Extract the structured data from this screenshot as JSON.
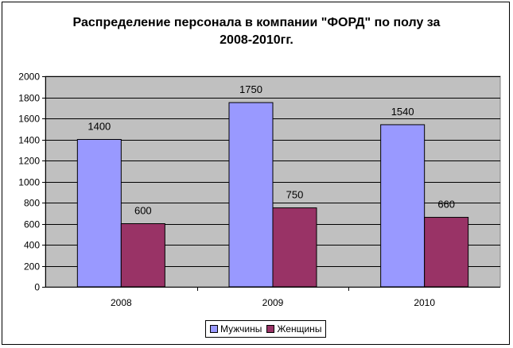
{
  "chart_data": {
    "type": "bar",
    "title_line1": "Распределение персонала в компании \"ФОРД\" по полу за",
    "title_line2": "2008-2010гг.",
    "categories": [
      "2008",
      "2009",
      "2010"
    ],
    "series": [
      {
        "name": "Мужчины",
        "values": [
          1400,
          1750,
          1540
        ],
        "color": "#9999FF"
      },
      {
        "name": "Женщины",
        "values": [
          600,
          750,
          660
        ],
        "color": "#993366"
      }
    ],
    "ylim": [
      0,
      2000
    ],
    "ytick_step": 200,
    "grid": true,
    "legend_position": "bottom",
    "plot_background": "#C0C0C0"
  }
}
